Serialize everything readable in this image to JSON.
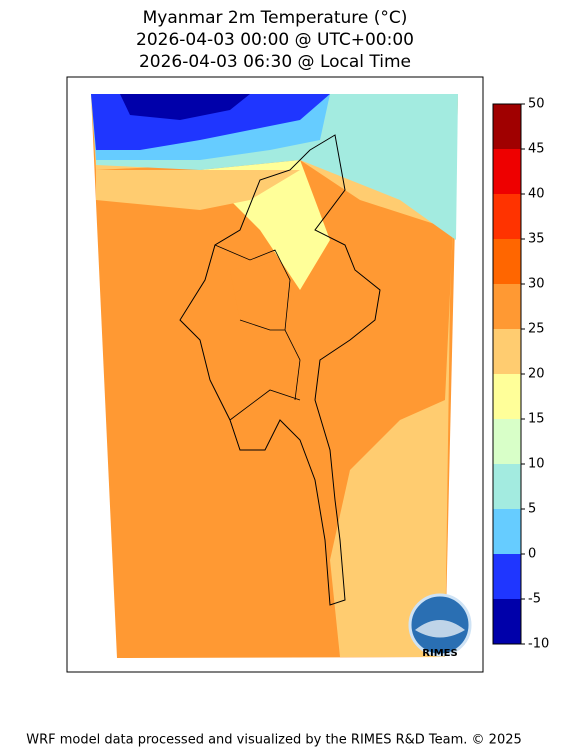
{
  "title": [
    "Myanmar 2m Temperature (°C)",
    "2026-04-03 00:00 @ UTC+00:00",
    "2026-04-03 06:30 @ Local Time"
  ],
  "colorbar": {
    "ticks": [
      -10,
      -5,
      0,
      5,
      10,
      15,
      20,
      25,
      30,
      35,
      40,
      45,
      50
    ],
    "colors": [
      "#0000aa",
      "#1f36ff",
      "#66ccff",
      "#a3ebe0",
      "#d8ffc8",
      "#ffff99",
      "#ffcc70",
      "#ff9933",
      "#ff6600",
      "#ff3300",
      "#ee0000",
      "#a00000"
    ]
  },
  "logo": "RIMES",
  "footer": "WRF model data processed and visualized by the RIMES R&D Team. © 2025"
}
